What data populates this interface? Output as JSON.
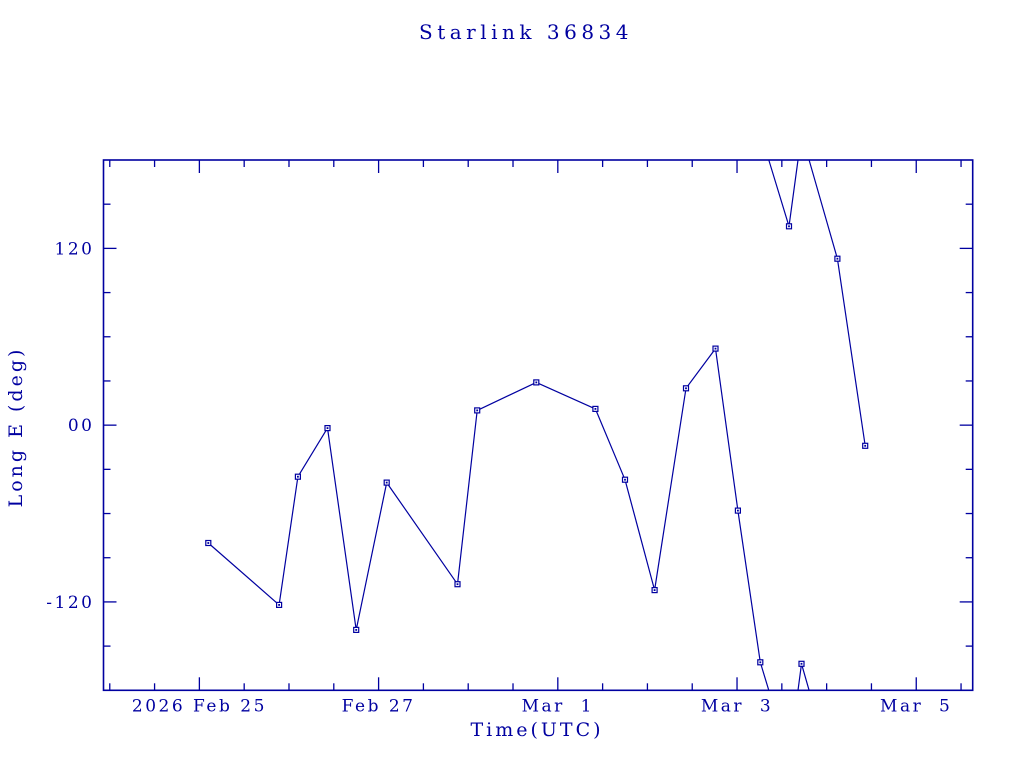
{
  "page": {
    "background": "#ffffff",
    "accent": "#0000A0"
  },
  "chart_data": {
    "type": "line",
    "title": "Starlink 36834",
    "xlabel": "Time(UTC)",
    "ylabel": "Long E (deg)",
    "grid": "off",
    "legend": "none",
    "x_axis": {
      "unit": "days relative to 2026-02-25 00:00 UTC",
      "min": -1.07,
      "max": 8.63,
      "minor_step": 0.5,
      "major_ticks": [
        0,
        2,
        4,
        6,
        8
      ],
      "major_labels": [
        "2026 Feb 25",
        "Feb 27",
        "Mar  1",
        "Mar  3",
        "Mar  5"
      ]
    },
    "y_axis": {
      "unit": "deg",
      "min": -180,
      "max": 180,
      "minor_step": 30,
      "major_ticks": [
        120,
        0,
        -120
      ],
      "major_labels": [
        "120",
        "00",
        "-120"
      ]
    },
    "wrap_at_deg": 180,
    "series": [
      {
        "name": "Starlink 36834 sub-satellite longitude",
        "color": "#0000A0",
        "marker": "open-square-dot",
        "points": [
          {
            "t": 0.1,
            "lon": -80
          },
          {
            "t": 0.89,
            "lon": -122
          },
          {
            "t": 1.1,
            "lon": -35
          },
          {
            "t": 1.43,
            "lon": -2
          },
          {
            "t": 1.75,
            "lon": -139
          },
          {
            "t": 2.09,
            "lon": -39
          },
          {
            "t": 2.88,
            "lon": -108
          },
          {
            "t": 3.1,
            "lon": 10
          },
          {
            "t": 3.76,
            "lon": 29
          },
          {
            "t": 4.42,
            "lon": 11
          },
          {
            "t": 4.75,
            "lon": -37
          },
          {
            "t": 5.08,
            "lon": -112
          },
          {
            "t": 5.43,
            "lon": 25
          },
          {
            "t": 5.76,
            "lon": 52
          },
          {
            "t": 6.01,
            "lon": -58
          },
          {
            "t": 6.26,
            "lon": -161
          },
          {
            "t": 6.58,
            "lon": 135
          },
          {
            "t": 6.72,
            "lon": -162
          },
          {
            "t": 7.12,
            "lon": 113
          },
          {
            "t": 7.43,
            "lon": -14
          }
        ]
      }
    ]
  }
}
